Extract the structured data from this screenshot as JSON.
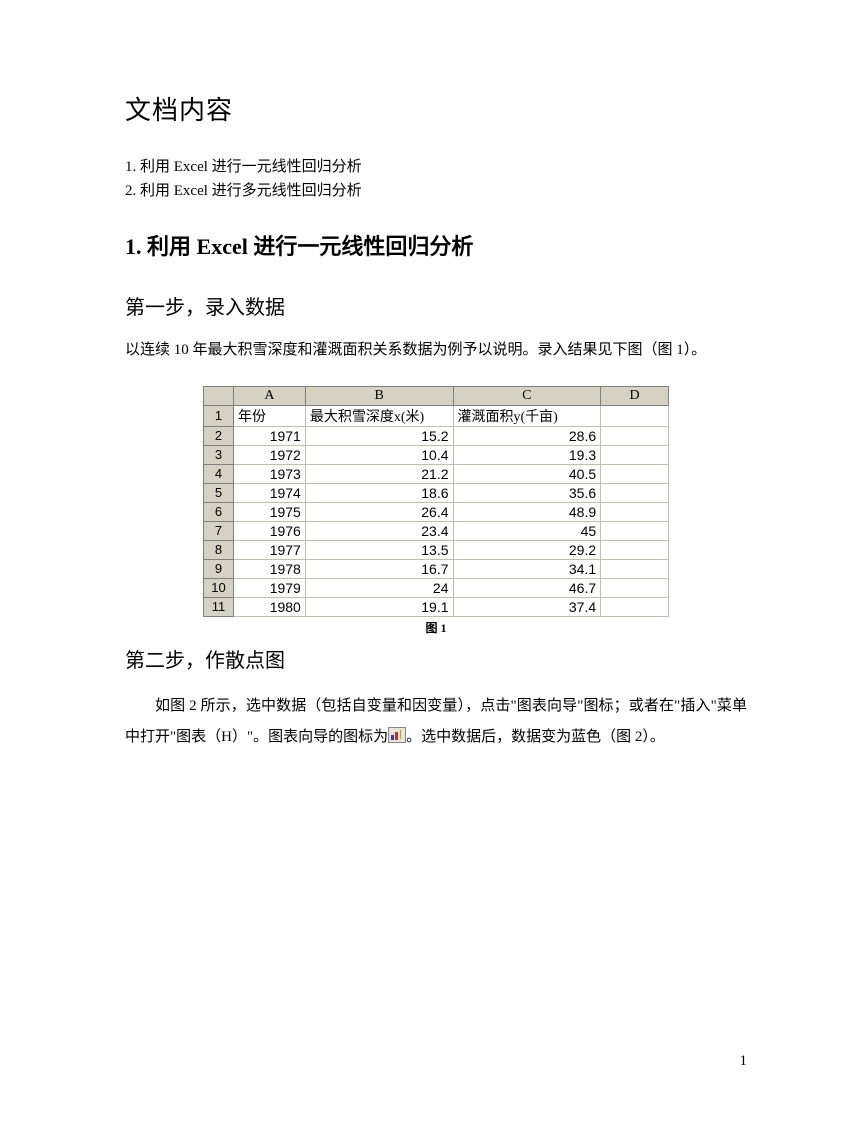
{
  "title": "文档内容",
  "toc": [
    "1. 利用 Excel 进行一元线性回归分析",
    "2. 利用 Excel 进行多元线性回归分析"
  ],
  "section1": {
    "num": "1.",
    "prefix": " 利用 ",
    "excel": "Excel",
    "suffix": " 进行一元线性回归分析"
  },
  "step1_heading": "第一步，录入数据",
  "step1_text": "以连续 10 年最大积雪深度和灌溉面积关系数据为例予以说明。录入结果见下图（图 1）。",
  "excel_table": {
    "col_letters": [
      "A",
      "B",
      "C",
      "D"
    ],
    "header_row": {
      "rn": "1",
      "cells": [
        "年份",
        "最大积雪深度x(米)",
        "灌溉面积y(千亩)",
        ""
      ]
    },
    "data_rows": [
      {
        "rn": "2",
        "year": "1971",
        "x": "15.2",
        "y": "28.6"
      },
      {
        "rn": "3",
        "year": "1972",
        "x": "10.4",
        "y": "19.3"
      },
      {
        "rn": "4",
        "year": "1973",
        "x": "21.2",
        "y": "40.5"
      },
      {
        "rn": "5",
        "year": "1974",
        "x": "18.6",
        "y": "35.6"
      },
      {
        "rn": "6",
        "year": "1975",
        "x": "26.4",
        "y": "48.9"
      },
      {
        "rn": "7",
        "year": "1976",
        "x": "23.4",
        "y": "45"
      },
      {
        "rn": "8",
        "year": "1977",
        "x": "13.5",
        "y": "29.2"
      },
      {
        "rn": "9",
        "year": "1978",
        "x": "16.7",
        "y": "34.1"
      },
      {
        "rn": "10",
        "year": "1979",
        "x": "24",
        "y": "46.7"
      },
      {
        "rn": "11",
        "year": "1980",
        "x": "19.1",
        "y": "37.4"
      }
    ],
    "colors": {
      "header_bg": "#d6d2c3",
      "header_border": "#808080",
      "cell_border": "#c0c0b0",
      "bg": "#ffffff"
    }
  },
  "caption1": "图 1",
  "step2_heading": "第二步，作散点图",
  "step2_text_a": "如图 2 所示，选中数据（包括自变量和因变量），点击\"图表向导\"图标；或者在\"插入\"菜单中打开\"图表（H）\"。图表向导的图标为",
  "step2_text_b": "。选中数据后，数据变为蓝色（图 2）。",
  "page_number": "1",
  "icon_name": "chart-wizard-icon"
}
